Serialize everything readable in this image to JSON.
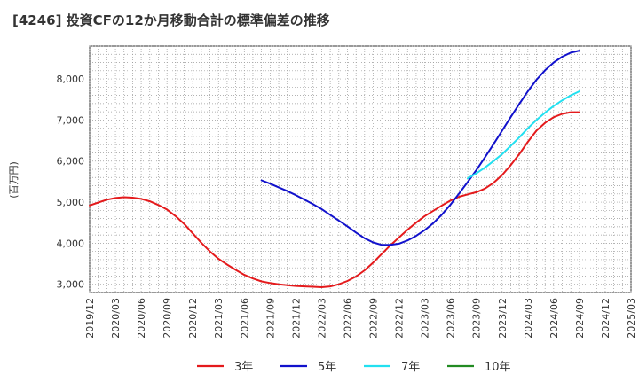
{
  "chart_data": {
    "type": "line",
    "title": "[4246]  投資CFの12か月移動合計の標準偏差の推移",
    "ylabel": "(百万円)",
    "xlabel": "",
    "ylim": [
      2800,
      8800
    ],
    "yticks": [
      3000,
      4000,
      5000,
      6000,
      7000,
      8000
    ],
    "ytick_labels": [
      "3,000",
      "4,000",
      "5,000",
      "6,000",
      "7,000",
      "8,000"
    ],
    "xtick_labels": [
      "2019/12",
      "2020/03",
      "2020/06",
      "2020/09",
      "2020/12",
      "2021/03",
      "2021/06",
      "2021/09",
      "2021/12",
      "2022/03",
      "2022/06",
      "2022/09",
      "2022/12",
      "2023/03",
      "2023/06",
      "2023/09",
      "2023/12",
      "2024/03",
      "2024/06",
      "2024/09",
      "2024/12",
      "2025/03"
    ],
    "grid": true,
    "legend_position": "bottom",
    "series": [
      {
        "name": "3年",
        "color": "#e41a1c",
        "x": [
          "2019/12",
          "2020/01",
          "2020/02",
          "2020/03",
          "2020/04",
          "2020/05",
          "2020/06",
          "2020/07",
          "2020/08",
          "2020/09",
          "2020/10",
          "2020/11",
          "2020/12",
          "2021/01",
          "2021/02",
          "2021/03",
          "2021/04",
          "2021/05",
          "2021/06",
          "2021/07",
          "2021/08",
          "2021/09",
          "2021/10",
          "2021/11",
          "2021/12",
          "2022/01",
          "2022/02",
          "2022/03",
          "2022/04",
          "2022/05",
          "2022/06",
          "2022/07",
          "2022/08",
          "2022/09",
          "2022/10",
          "2022/11",
          "2022/12",
          "2023/01",
          "2023/02",
          "2023/03",
          "2023/04",
          "2023/05",
          "2023/06",
          "2023/07",
          "2023/08",
          "2023/09",
          "2023/10",
          "2023/11",
          "2023/12",
          "2024/01",
          "2024/02",
          "2024/03",
          "2024/04",
          "2024/05",
          "2024/06",
          "2024/07",
          "2024/08",
          "2024/09"
        ],
        "values": [
          4920,
          4990,
          5060,
          5100,
          5120,
          5110,
          5080,
          5020,
          4930,
          4820,
          4660,
          4470,
          4240,
          4010,
          3800,
          3620,
          3480,
          3350,
          3230,
          3140,
          3070,
          3030,
          3000,
          2980,
          2960,
          2950,
          2940,
          2930,
          2950,
          3000,
          3080,
          3190,
          3340,
          3530,
          3740,
          3950,
          4140,
          4330,
          4500,
          4660,
          4790,
          4920,
          5040,
          5130,
          5190,
          5240,
          5330,
          5470,
          5660,
          5900,
          6170,
          6470,
          6740,
          6930,
          7070,
          7150,
          7190,
          7190
        ]
      },
      {
        "name": "5年",
        "color": "#1111cc",
        "x": [
          "2021/08",
          "2021/09",
          "2021/10",
          "2021/11",
          "2021/12",
          "2022/01",
          "2022/02",
          "2022/03",
          "2022/04",
          "2022/05",
          "2022/06",
          "2022/07",
          "2022/08",
          "2022/09",
          "2022/10",
          "2022/11",
          "2022/12",
          "2023/01",
          "2023/02",
          "2023/03",
          "2023/04",
          "2023/05",
          "2023/06",
          "2023/07",
          "2023/08",
          "2023/09",
          "2023/10",
          "2023/11",
          "2023/12",
          "2024/01",
          "2024/02",
          "2024/03",
          "2024/04",
          "2024/05",
          "2024/06",
          "2024/07",
          "2024/08",
          "2024/09"
        ],
        "values": [
          5530,
          5450,
          5360,
          5270,
          5170,
          5060,
          4950,
          4830,
          4690,
          4550,
          4410,
          4260,
          4120,
          4020,
          3960,
          3960,
          3990,
          4070,
          4180,
          4320,
          4490,
          4700,
          4940,
          5210,
          5490,
          5780,
          6090,
          6410,
          6740,
          7070,
          7390,
          7700,
          7980,
          8210,
          8400,
          8540,
          8640,
          8690
        ]
      },
      {
        "name": "7年",
        "color": "#22e0f0",
        "x": [
          "2023/08",
          "2023/09",
          "2023/10",
          "2023/11",
          "2023/12",
          "2024/01",
          "2024/02",
          "2024/03",
          "2024/04",
          "2024/05",
          "2024/06",
          "2024/07",
          "2024/08",
          "2024/09"
        ],
        "values": [
          5580,
          5700,
          5840,
          6000,
          6170,
          6370,
          6580,
          6800,
          7000,
          7180,
          7340,
          7480,
          7600,
          7700
        ]
      },
      {
        "name": "10年",
        "color": "#228b22",
        "x": [],
        "values": []
      }
    ]
  }
}
